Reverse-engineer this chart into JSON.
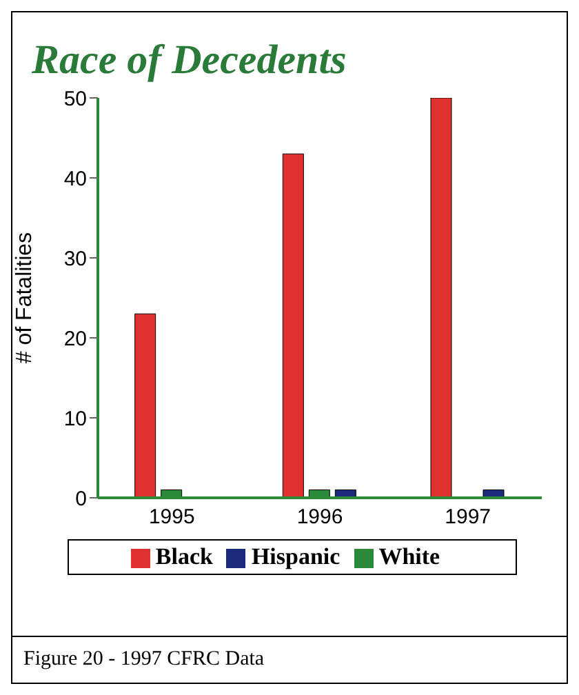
{
  "chart_data": {
    "type": "bar",
    "title": "Race of Decedents",
    "ylabel": "# of Fatalities",
    "categories": [
      "1995",
      "1996",
      "1997"
    ],
    "series": [
      {
        "name": "Black",
        "color": "#e03030",
        "values": [
          23,
          43,
          50
        ]
      },
      {
        "name": "White",
        "color": "#2a8a3a",
        "values": [
          1,
          1,
          0
        ]
      },
      {
        "name": "Hispanic",
        "color": "#1c2a7a",
        "values": [
          0,
          1,
          1
        ]
      }
    ],
    "ylim": [
      0,
      50
    ],
    "yticks": [
      0,
      10,
      20,
      30,
      40,
      50
    ],
    "grid": false,
    "legend": "bottom",
    "annotations": [
      "Figure 20 - 1997 CFRC Data"
    ]
  }
}
